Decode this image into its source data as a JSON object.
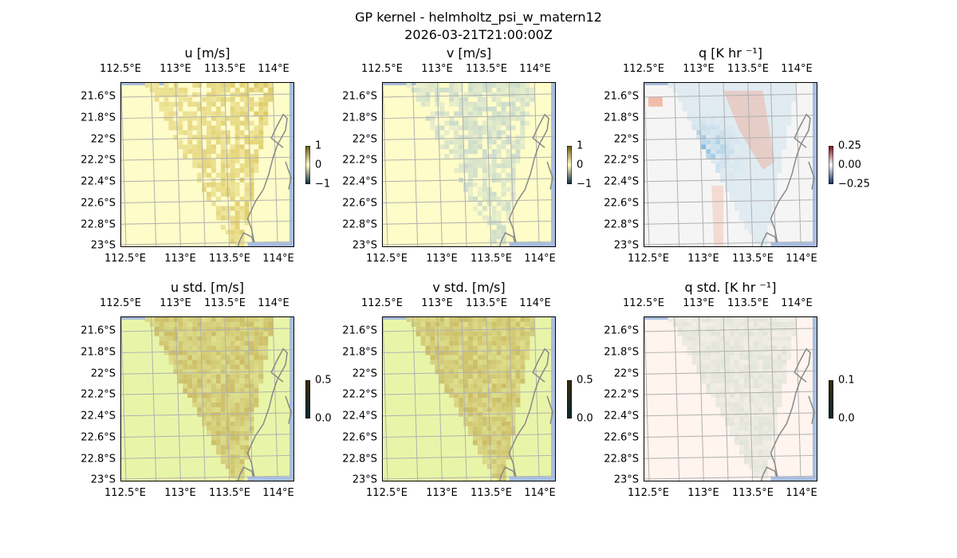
{
  "figure": {
    "title_line1": "GP kernel - helmholtz_psi_w_matern12",
    "title_line2": "2026-03-21T21:00:00Z"
  },
  "axes": {
    "lon_labels": [
      "112.5°E",
      "113°E",
      "113.5°E",
      "114°E"
    ],
    "lat_labels": [
      "21.6°S",
      "21.8°S",
      "22°S",
      "22.2°S",
      "22.4°S",
      "22.6°S",
      "22.8°S",
      "23°S"
    ],
    "lon_values": [
      112.5,
      113.0,
      113.5,
      114.0
    ],
    "lat_values": [
      -21.6,
      -21.8,
      -22.0,
      -22.2,
      -22.4,
      -22.6,
      -22.8,
      -23.0
    ]
  },
  "panels": [
    {
      "id": "u",
      "title": "u [m/s]",
      "colorbar_ticks": [
        "1",
        "0",
        "−1"
      ],
      "colorbar_range": [
        -1,
        1
      ],
      "base_color": "#fefcc8",
      "field_color": "#d9c45a"
    },
    {
      "id": "v",
      "title": "v [m/s]",
      "colorbar_ticks": [
        "1",
        "0",
        "−1"
      ],
      "colorbar_range": [
        -1,
        1
      ],
      "base_color": "#fefcc8",
      "field_color": "#c5d8cc"
    },
    {
      "id": "q",
      "title": "q [K hr ⁻¹]",
      "colorbar_ticks": [
        "0.25",
        "0.00",
        "−0.25"
      ],
      "colorbar_range": [
        -0.25,
        0.25
      ],
      "base_color": "#f5f5f5",
      "field_color": "#6ab0dd"
    },
    {
      "id": "u_std",
      "title": "u std. [m/s]",
      "colorbar_ticks": [
        "0.5",
        "0.0"
      ],
      "colorbar_range": [
        0,
        0.5
      ],
      "base_color": "#e8f5a8",
      "field_color": "#c9b65e"
    },
    {
      "id": "v_std",
      "title": "v std. [m/s]",
      "colorbar_ticks": [
        "0.5",
        "0.0"
      ],
      "colorbar_range": [
        0,
        0.5
      ],
      "base_color": "#e8f5a8",
      "field_color": "#c9b65e"
    },
    {
      "id": "q_std",
      "title": "q std. [K hr ⁻¹]",
      "colorbar_ticks": [
        "0.1",
        "0.0"
      ],
      "colorbar_range": [
        0,
        0.1
      ],
      "base_color": "#fff4ee",
      "field_color": "#dde3d6"
    }
  ],
  "colors": {
    "ocean": "#a8bde0",
    "coast": "#888888",
    "grid": "#b0b0b0"
  }
}
